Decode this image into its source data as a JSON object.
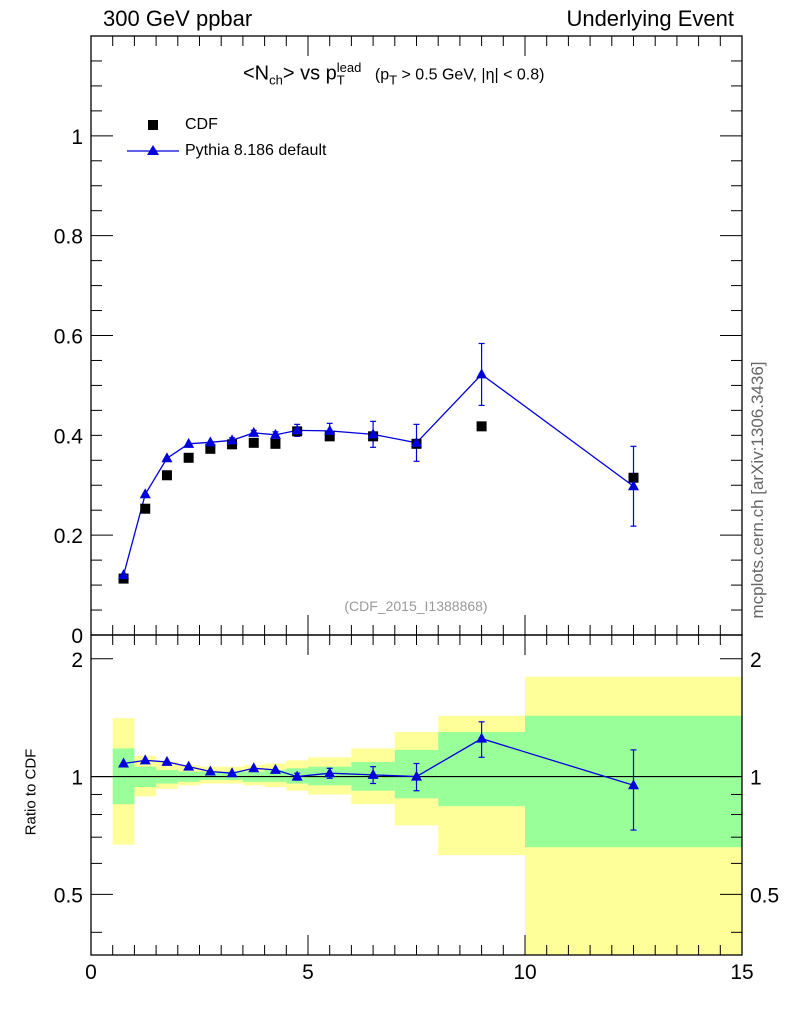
{
  "header": {
    "left": "300 GeV ppbar",
    "right": "Underlying Event"
  },
  "side_label": "mcplots.cern.ch [arXiv:1306.3436]",
  "watermark": "(CDF_2015_I1388868)",
  "title": {
    "main_prefix": "<N",
    "main_sub": "ch",
    "main_mid": "> vs p",
    "main_sub2": "T",
    "main_sup": "lead",
    "cut_prefix": "(p",
    "cut_sub": "T",
    "cut_rest": " > 0.5 GeV, |η| < 0.8)"
  },
  "colors": {
    "pythia": "#0000dd",
    "band_outer": "#ffff99",
    "band_inner": "#99ff99",
    "data": "#000000"
  },
  "chart_data": [
    {
      "type": "scatter",
      "panel": "main",
      "xlim": [
        0,
        15
      ],
      "ylim": [
        0,
        1.2
      ],
      "ytick_labels": [
        "0",
        "0.2",
        "0.4",
        "0.6",
        "0.8",
        "1"
      ],
      "yticks": [
        0,
        0.2,
        0.4,
        0.6,
        0.8,
        1.0
      ],
      "legend_position": "top-left",
      "series": [
        {
          "name": "CDF",
          "marker": "square",
          "x": [
            0.75,
            1.25,
            1.75,
            2.25,
            2.75,
            3.25,
            3.75,
            4.25,
            4.75,
            5.5,
            6.5,
            7.5,
            9.0,
            12.5
          ],
          "y": [
            0.113,
            0.253,
            0.32,
            0.355,
            0.373,
            0.382,
            0.385,
            0.383,
            0.408,
            0.398,
            0.398,
            0.383,
            0.418,
            0.315
          ]
        },
        {
          "name": "Pythia 8.186 default",
          "marker": "triangle",
          "x": [
            0.75,
            1.25,
            1.75,
            2.25,
            2.75,
            3.25,
            3.75,
            4.25,
            4.75,
            5.5,
            6.5,
            7.5,
            9.0,
            12.5
          ],
          "y": [
            0.12,
            0.282,
            0.354,
            0.383,
            0.386,
            0.39,
            0.405,
            0.401,
            0.41,
            0.409,
            0.402,
            0.385,
            0.522,
            0.298
          ],
          "yerr": [
            0.003,
            0.004,
            0.004,
            0.004,
            0.004,
            0.005,
            0.005,
            0.006,
            0.012,
            0.015,
            0.026,
            0.037,
            0.062,
            0.08
          ]
        }
      ]
    },
    {
      "type": "line",
      "panel": "ratio",
      "xlabel": "",
      "ylabel": "Ratio to CDF",
      "xlim": [
        0,
        15
      ],
      "ylim": [
        0.35,
        2.3
      ],
      "log_y": true,
      "xticks": [
        0,
        5,
        10,
        15
      ],
      "xtick_labels": [
        "0",
        "5",
        "10",
        "15"
      ],
      "yticks": [
        0.5,
        1,
        2
      ],
      "ytick_labels": [
        "0.5",
        "1",
        "2"
      ],
      "bands": {
        "edges": [
          0.5,
          1.0,
          1.5,
          2.0,
          2.5,
          3.0,
          3.5,
          4.0,
          4.5,
          5.0,
          6.0,
          7.0,
          8.0,
          10.0,
          15.0
        ],
        "outer_low": [
          0.67,
          0.89,
          0.93,
          0.95,
          0.96,
          0.96,
          0.95,
          0.94,
          0.92,
          0.9,
          0.85,
          0.75,
          0.63,
          0.35
        ],
        "outer_high": [
          1.41,
          1.13,
          1.09,
          1.07,
          1.06,
          1.06,
          1.07,
          1.08,
          1.1,
          1.12,
          1.18,
          1.3,
          1.43,
          1.8
        ],
        "inner_low": [
          0.85,
          0.94,
          0.96,
          0.97,
          0.98,
          0.98,
          0.97,
          0.97,
          0.96,
          0.95,
          0.92,
          0.88,
          0.84,
          0.66
        ],
        "inner_high": [
          1.18,
          1.06,
          1.04,
          1.03,
          1.03,
          1.03,
          1.03,
          1.04,
          1.05,
          1.06,
          1.09,
          1.17,
          1.3,
          1.43
        ]
      },
      "series": [
        {
          "name": "Pythia 8.186 default",
          "x": [
            0.75,
            1.25,
            1.75,
            2.25,
            2.75,
            3.25,
            3.75,
            4.25,
            4.75,
            5.5,
            6.5,
            7.5,
            9.0,
            12.5
          ],
          "y": [
            1.08,
            1.1,
            1.09,
            1.06,
            1.03,
            1.02,
            1.05,
            1.04,
            1.0,
            1.02,
            1.01,
            1.0,
            1.25,
            0.95
          ],
          "yerr": [
            0.01,
            0.01,
            0.01,
            0.01,
            0.01,
            0.01,
            0.01,
            0.01,
            0.02,
            0.03,
            0.05,
            0.08,
            0.13,
            0.22
          ]
        }
      ]
    }
  ]
}
